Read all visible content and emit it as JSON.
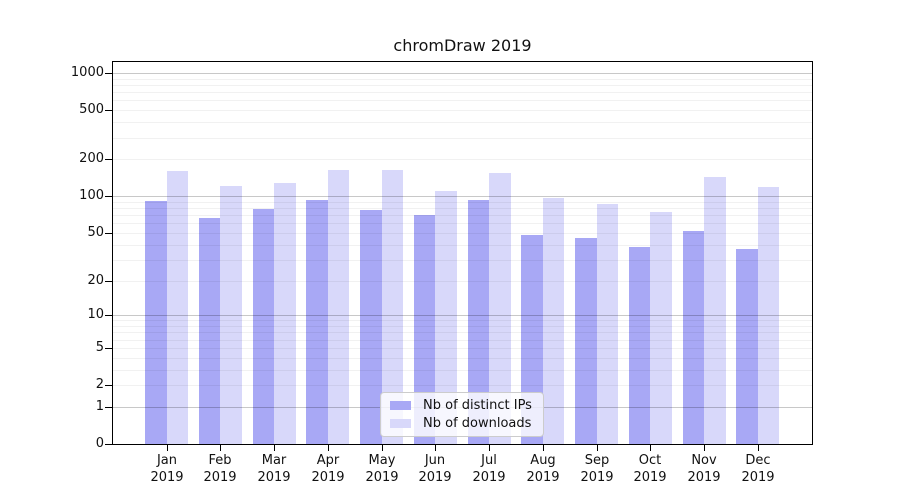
{
  "title": "chromDraw 2019",
  "colors": {
    "bar_ips": "#a8a8f5",
    "bar_downloads": "#d8d8fa",
    "grid_minor": "rgba(0,0,0,0.055)",
    "grid_major": "rgba(0,0,0,0.215)"
  },
  "chart_data": {
    "type": "bar",
    "title": "chromDraw 2019",
    "categories": [
      "Jan",
      "Feb",
      "Mar",
      "Apr",
      "May",
      "Jun",
      "Jul",
      "Aug",
      "Sep",
      "Oct",
      "Nov",
      "Dec"
    ],
    "year_label": "2019",
    "series": [
      {
        "name": "Nb of distinct IPs",
        "color_key": "bar_ips",
        "values": [
          91,
          66,
          78,
          94,
          77,
          70,
          93,
          48,
          45,
          38,
          52,
          37
        ]
      },
      {
        "name": "Nb of downloads",
        "color_key": "bar_downloads",
        "values": [
          160,
          122,
          127,
          163,
          163,
          110,
          154,
          96,
          86,
          74,
          143,
          118
        ]
      }
    ],
    "yticks": [
      0,
      1,
      2,
      5,
      10,
      20,
      50,
      100,
      200,
      500,
      1000
    ],
    "scale": "log1p",
    "ylim": [
      0,
      1000
    ],
    "xlabel": "",
    "ylabel": "",
    "grid": "minor and major horizontal gridlines drawn over bars",
    "legend_position": "bottom-center"
  }
}
